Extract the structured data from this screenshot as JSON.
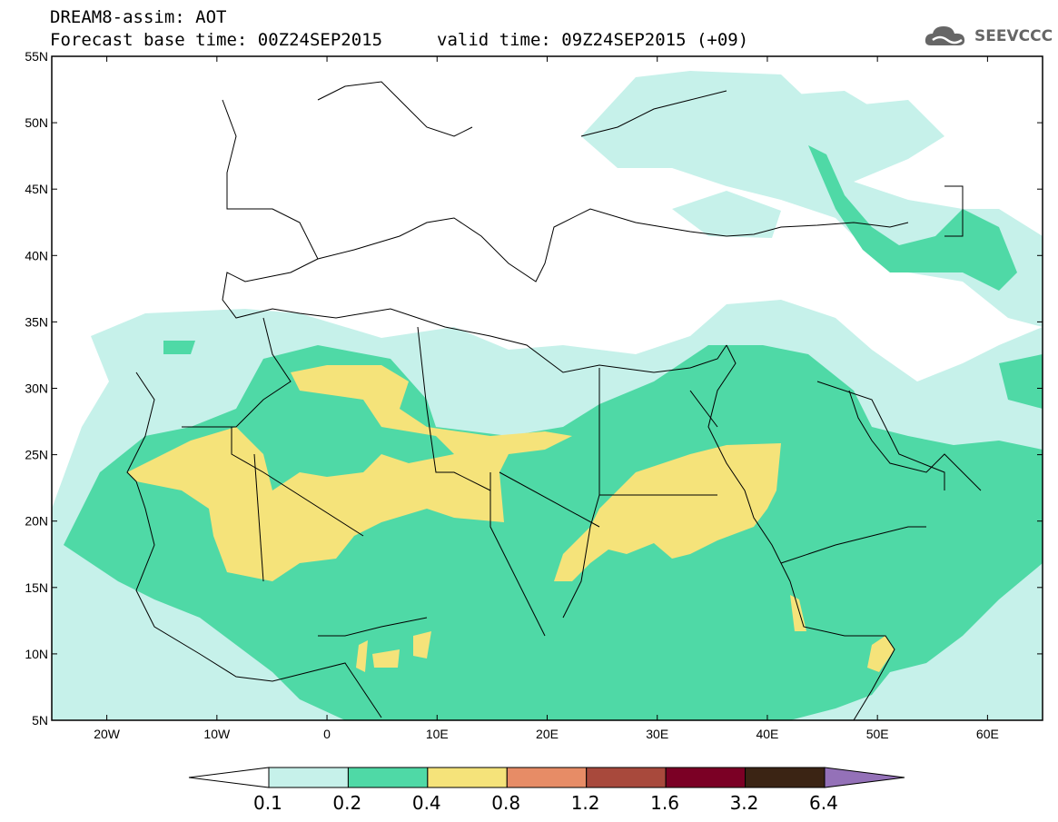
{
  "header": {
    "model": "DREAM8-assim: AOT",
    "base": "Forecast base time: 00Z24SEP2015",
    "valid": "valid time: 09Z24SEP2015 (+09)",
    "logo_text": "SEEVCCC"
  },
  "map": {
    "lat_labels": [
      "55N",
      "50N",
      "45N",
      "40N",
      "35N",
      "30N",
      "25N",
      "20N",
      "15N",
      "10N",
      "5N"
    ],
    "lon_labels": [
      "20W",
      "10W",
      "0",
      "10E",
      "20E",
      "30E",
      "40E",
      "50E",
      "60E"
    ],
    "extent": {
      "lon": [
        -25,
        65
      ],
      "lat": [
        5,
        55
      ]
    }
  },
  "legend": {
    "thresholds": [
      "0.1",
      "0.2",
      "0.4",
      "0.8",
      "1.2",
      "1.6",
      "3.2",
      "6.4"
    ],
    "colors": [
      "#ffffff",
      "#c6f1ea",
      "#4fd9a6",
      "#f5e37a",
      "#e78c66",
      "#a8493c",
      "#7b0025",
      "#3b2414",
      "#9471b8"
    ]
  }
}
